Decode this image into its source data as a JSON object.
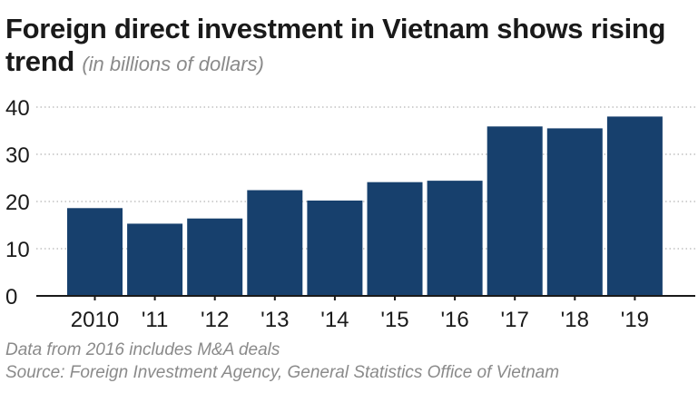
{
  "header": {
    "title": "Foreign direct investment in Vietnam shows rising trend",
    "subtitle": "(in billions of dollars)"
  },
  "footnotes": {
    "note": "Data from 2016 includes M&A deals",
    "source": "Source: Foreign Investment Agency, General Statistics Office of Vietnam"
  },
  "colors": {
    "bar": "#17406d",
    "grid": "#b5b5b5",
    "axis": "#1a1a1a",
    "text": "#1a1a1a",
    "muted": "#8a8a8a"
  },
  "chart_data": {
    "type": "bar",
    "title": "Foreign direct investment in Vietnam shows rising trend",
    "subtitle": "(in billions of dollars)",
    "xlabel": "",
    "ylabel": "",
    "categories": [
      "2010",
      "'11",
      "'12",
      "'13",
      "'14",
      "'15",
      "'16",
      "'17",
      "'18",
      "'19"
    ],
    "values": [
      18.6,
      15.3,
      16.4,
      22.4,
      20.2,
      24.1,
      24.4,
      35.9,
      35.5,
      38.0
    ],
    "ylim": [
      0,
      40
    ],
    "yticks": [
      0,
      10,
      20,
      30,
      40
    ],
    "grid": true,
    "legend": "none"
  }
}
